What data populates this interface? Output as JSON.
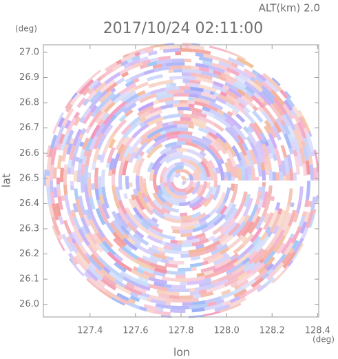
{
  "chart_data": {
    "type": "radar-ppi",
    "title": "2017/10/24 02:11:00",
    "subtitle": "ALT(km) 2.0",
    "x_label": "lon",
    "x_unit": "(deg)",
    "y_label": "lat",
    "y_unit": "(deg)",
    "xlim": [
      127.195,
      128.405
    ],
    "ylim": [
      25.95,
      27.03
    ],
    "xticks": [
      127.4,
      127.6,
      127.8,
      {
        "value": 128.0,
        "label": "128.0"
      },
      128.2,
      128.4
    ],
    "yticks": [
      {
        "value": 26.0,
        "label": "26.0"
      },
      26.1,
      26.2,
      26.3,
      26.4,
      26.5,
      26.6,
      26.7,
      26.8,
      26.9,
      {
        "value": 27.0,
        "label": "27.0"
      }
    ]
  }
}
